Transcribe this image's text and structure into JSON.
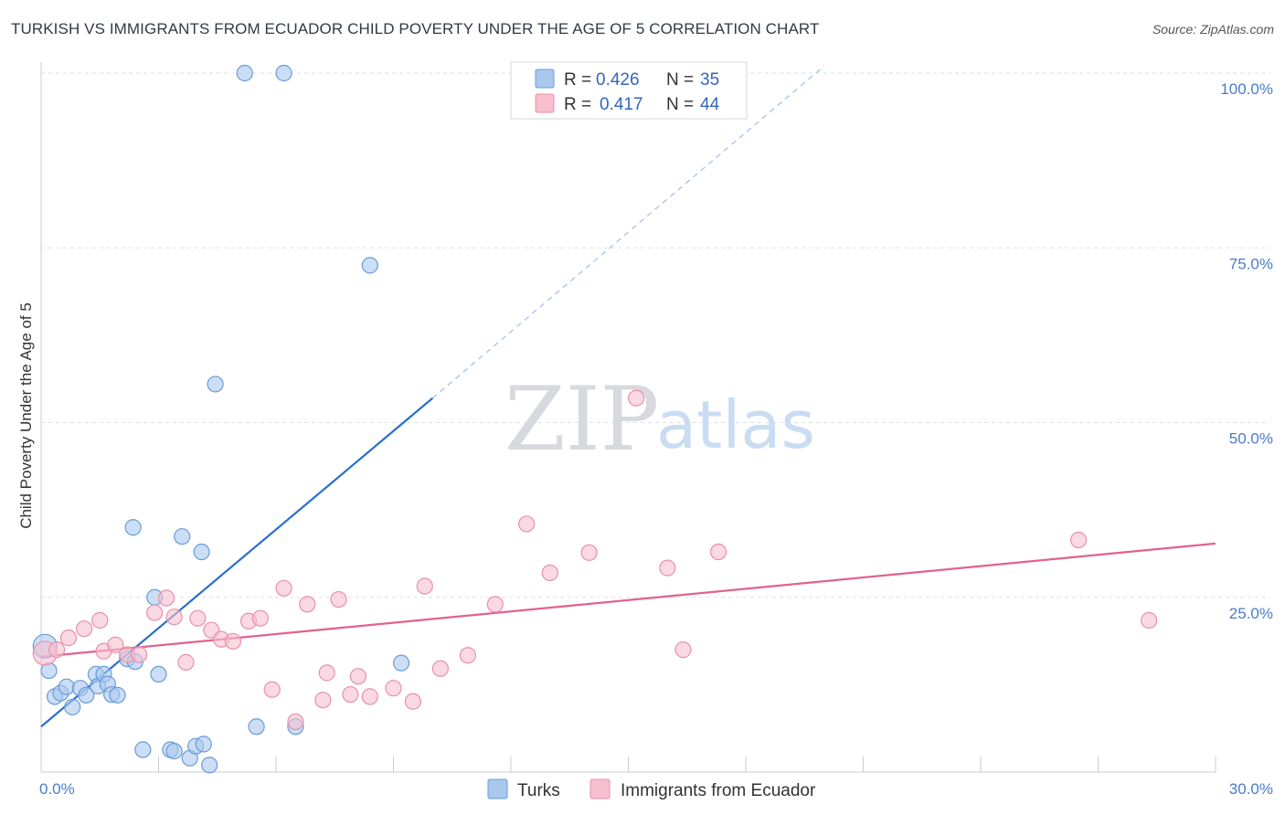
{
  "title": "TURKISH VS IMMIGRANTS FROM ECUADOR CHILD POVERTY UNDER THE AGE OF 5 CORRELATION CHART",
  "source": "Source: ZipAtlas.com",
  "watermark": {
    "zip": "ZIP",
    "atlas": "atlas"
  },
  "colors": {
    "turks_fill": "#a9c8ee",
    "turks_stroke": "#6a9bd8",
    "turks_line": "#2a6fd0",
    "ecuador_fill": "#f7bfcf",
    "ecuador_stroke": "#e88fac",
    "ecuador_line": "#e0628e",
    "grid": "#dcdfe4",
    "tick_label": "#4a7cc7"
  },
  "legend": {
    "rows": [
      {
        "r_label": "R = ",
        "r_value": "0.426",
        "n_label": "N = ",
        "n_value": "35"
      },
      {
        "r_label": "R = ",
        "r_value": "0.417",
        "n_label": "N = ",
        "n_value": "44"
      }
    ]
  },
  "chart_data": {
    "type": "scatter",
    "title": "TURKISH VS IMMIGRANTS FROM ECUADOR CHILD POVERTY UNDER THE AGE OF 5 CORRELATION CHART",
    "xlabel": "",
    "ylabel": "Child Poverty Under the Age of 5",
    "xlim": [
      0,
      30
    ],
    "ylim": [
      0,
      100
    ],
    "x_tick_labels": [
      "0.0%",
      "30.0%"
    ],
    "y_ticks": [
      25,
      50,
      75,
      100
    ],
    "y_tick_labels": [
      "25.0%",
      "50.0%",
      "75.0%",
      "100.0%"
    ],
    "series": [
      {
        "name": "Turks",
        "points": [
          [
            0.1,
            18.0
          ],
          [
            0.2,
            14.5
          ],
          [
            0.35,
            10.8
          ],
          [
            0.5,
            11.3
          ],
          [
            0.65,
            12.2
          ],
          [
            0.8,
            9.3
          ],
          [
            1.0,
            12.0
          ],
          [
            1.15,
            11.0
          ],
          [
            1.4,
            14.0
          ],
          [
            1.45,
            12.3
          ],
          [
            1.6,
            14.0
          ],
          [
            1.7,
            12.6
          ],
          [
            1.8,
            11.1
          ],
          [
            1.95,
            11.0
          ],
          [
            2.2,
            16.2
          ],
          [
            2.35,
            35.0
          ],
          [
            2.4,
            15.8
          ],
          [
            2.6,
            3.2
          ],
          [
            2.9,
            25.0
          ],
          [
            3.0,
            14.0
          ],
          [
            3.3,
            3.2
          ],
          [
            3.4,
            3.0
          ],
          [
            3.6,
            33.7
          ],
          [
            3.8,
            2.0
          ],
          [
            3.95,
            3.7
          ],
          [
            4.1,
            31.5
          ],
          [
            4.15,
            4.0
          ],
          [
            4.3,
            1.0
          ],
          [
            4.45,
            55.5
          ],
          [
            5.2,
            100.0
          ],
          [
            5.5,
            6.5
          ],
          [
            6.2,
            100.0
          ],
          [
            6.5,
            6.5
          ],
          [
            8.4,
            72.5
          ],
          [
            9.2,
            15.6
          ]
        ],
        "trend_solid": [
          [
            0.0,
            6.5
          ],
          [
            10.0,
            53.5
          ]
        ],
        "trend_dashed": [
          [
            10.0,
            53.5
          ],
          [
            20.0,
            101.0
          ]
        ]
      },
      {
        "name": "Immigrants from Ecuador",
        "points": [
          [
            0.1,
            17.0
          ],
          [
            0.4,
            17.5
          ],
          [
            0.7,
            19.2
          ],
          [
            1.1,
            20.5
          ],
          [
            1.5,
            21.7
          ],
          [
            1.6,
            17.3
          ],
          [
            1.9,
            18.2
          ],
          [
            2.2,
            16.8
          ],
          [
            2.5,
            16.8
          ],
          [
            2.9,
            22.8
          ],
          [
            3.2,
            24.9
          ],
          [
            3.4,
            22.2
          ],
          [
            3.7,
            15.7
          ],
          [
            4.0,
            22.0
          ],
          [
            4.35,
            20.3
          ],
          [
            4.6,
            19.0
          ],
          [
            4.9,
            18.7
          ],
          [
            5.3,
            21.6
          ],
          [
            5.6,
            22.0
          ],
          [
            5.9,
            11.8
          ],
          [
            6.2,
            26.3
          ],
          [
            6.5,
            7.2
          ],
          [
            6.8,
            24.0
          ],
          [
            7.2,
            10.3
          ],
          [
            7.3,
            14.2
          ],
          [
            7.6,
            24.7
          ],
          [
            7.9,
            11.1
          ],
          [
            8.1,
            13.7
          ],
          [
            8.4,
            10.8
          ],
          [
            9.0,
            12.0
          ],
          [
            9.5,
            10.1
          ],
          [
            9.8,
            26.6
          ],
          [
            10.2,
            14.8
          ],
          [
            10.9,
            16.7
          ],
          [
            11.6,
            24.0
          ],
          [
            12.4,
            35.5
          ],
          [
            13.0,
            28.5
          ],
          [
            14.0,
            31.4
          ],
          [
            15.2,
            53.5
          ],
          [
            16.0,
            29.2
          ],
          [
            16.4,
            17.5
          ],
          [
            17.3,
            31.5
          ],
          [
            26.5,
            33.2
          ],
          [
            28.3,
            21.7
          ]
        ],
        "trend_solid": [
          [
            0.0,
            16.5
          ],
          [
            30.0,
            32.7
          ]
        ]
      }
    ],
    "legend_position": "top-center",
    "grid": true
  }
}
